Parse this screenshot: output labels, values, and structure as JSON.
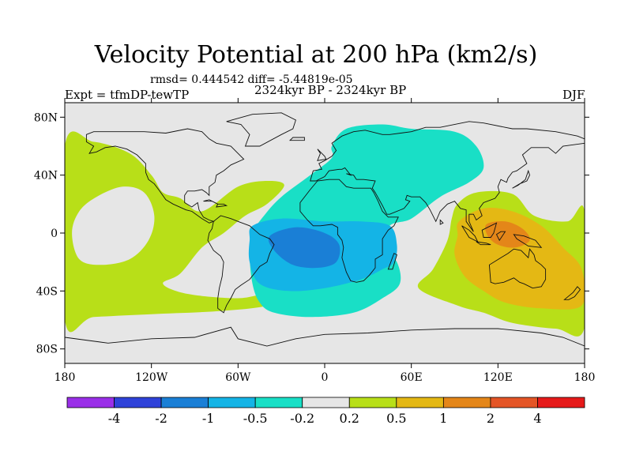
{
  "title": "Velocity Potential at 200 hPa (km2/s)",
  "stats_line": "rmsd= 0.444542 diff= -5.44819e-05",
  "period": "2324kyr BP - 2324kyr BP",
  "experiment": "Expt = tfmDP-tewTP",
  "season": "DJF",
  "chart_data": {
    "type": "heatmap",
    "projection": "cylindrical-equidistant",
    "variable": "Velocity Potential at 200 hPa",
    "units": "km2/s",
    "xlim": [
      -180,
      180
    ],
    "ylim": [
      -90,
      90
    ],
    "x_ticks": [
      {
        "value": -180,
        "label": "180"
      },
      {
        "value": -120,
        "label": "120W"
      },
      {
        "value": -60,
        "label": "60W"
      },
      {
        "value": 0,
        "label": "0"
      },
      {
        "value": 60,
        "label": "60E"
      },
      {
        "value": 120,
        "label": "120E"
      },
      {
        "value": 180,
        "label": "180"
      }
    ],
    "y_ticks": [
      {
        "value": 80,
        "label": "80N"
      },
      {
        "value": 40,
        "label": "40N"
      },
      {
        "value": 0,
        "label": "0"
      },
      {
        "value": -40,
        "label": "40S"
      },
      {
        "value": -80,
        "label": "80S"
      }
    ],
    "colorbar": {
      "levels": [
        -4,
        -2,
        -1,
        -0.5,
        -0.2,
        0.2,
        0.5,
        1,
        2,
        4
      ],
      "labels": [
        "-4",
        "-2",
        "-1",
        "-0.5",
        "-0.2",
        "0.2",
        "0.5",
        "1",
        "2",
        "4"
      ],
      "colors": [
        "#9a2fe8",
        "#2f42d9",
        "#1a7fd6",
        "#14b4e6",
        "#19dfc6",
        "#e6e6e6",
        "#b8df18",
        "#e4b814",
        "#e48619",
        "#e45526",
        "#e61a1a"
      ]
    },
    "regions": [
      {
        "name": "central-pacific-positive",
        "value_class": "0.2 to 0.5",
        "points": [
          [
            -180,
            60
          ],
          [
            -160,
            63
          ],
          [
            -135,
            55
          ],
          [
            -120,
            40
          ],
          [
            -112,
            28
          ],
          [
            -100,
            24
          ],
          [
            -85,
            15
          ],
          [
            -60,
            32
          ],
          [
            -40,
            36
          ],
          [
            -28,
            33
          ],
          [
            -40,
            20
          ],
          [
            -55,
            12
          ],
          [
            -70,
            0
          ],
          [
            -85,
            -10
          ],
          [
            -100,
            -28
          ],
          [
            -112,
            -35
          ],
          [
            -95,
            -42
          ],
          [
            -60,
            -45
          ],
          [
            -40,
            -42
          ],
          [
            -40,
            -50
          ],
          [
            -75,
            -54
          ],
          [
            -120,
            -56
          ],
          [
            -160,
            -58
          ],
          [
            -180,
            -60
          ]
        ]
      },
      {
        "name": "north-pacific-neutral-hole",
        "value_class": "-0.2 to 0.2",
        "points": [
          [
            -170,
            15
          ],
          [
            -158,
            25
          ],
          [
            -140,
            32
          ],
          [
            -125,
            28
          ],
          [
            -118,
            12
          ],
          [
            -122,
            -5
          ],
          [
            -135,
            -18
          ],
          [
            -155,
            -22
          ],
          [
            -170,
            -18
          ],
          [
            -175,
            0
          ]
        ]
      },
      {
        "name": "west-pacific-positive",
        "value_class": "0.2 to 0.5",
        "points": [
          [
            92,
            20
          ],
          [
            105,
            28
          ],
          [
            130,
            27
          ],
          [
            145,
            12
          ],
          [
            168,
            8
          ],
          [
            180,
            15
          ],
          [
            180,
            -65
          ],
          [
            160,
            -66
          ],
          [
            130,
            -62
          ],
          [
            110,
            -55
          ],
          [
            92,
            -50
          ],
          [
            65,
            -38
          ],
          [
            75,
            -25
          ],
          [
            85,
            -5
          ],
          [
            88,
            10
          ]
        ]
      },
      {
        "name": "maritime-continent-high",
        "value_class": "0.5 to 1",
        "points": [
          [
            93,
            8
          ],
          [
            110,
            17
          ],
          [
            130,
            15
          ],
          [
            150,
            5
          ],
          [
            165,
            -10
          ],
          [
            178,
            -25
          ],
          [
            178,
            -50
          ],
          [
            150,
            -52
          ],
          [
            125,
            -48
          ],
          [
            110,
            -40
          ],
          [
            97,
            -30
          ],
          [
            90,
            -15
          ],
          [
            92,
            -2
          ]
        ]
      },
      {
        "name": "indonesia-core",
        "value_class": "1 to 2",
        "points": [
          [
            112,
            6
          ],
          [
            125,
            8
          ],
          [
            137,
            3
          ],
          [
            142,
            -5
          ],
          [
            132,
            -10
          ],
          [
            120,
            -8
          ],
          [
            113,
            -2
          ]
        ]
      },
      {
        "name": "atlantic-africa-negative",
        "value_class": "-0.5 to -0.2",
        "points": [
          [
            -30,
            25
          ],
          [
            -10,
            40
          ],
          [
            5,
            52
          ],
          [
            5,
            60
          ],
          [
            15,
            72
          ],
          [
            40,
            75
          ],
          [
            60,
            72
          ],
          [
            90,
            70
          ],
          [
            105,
            60
          ],
          [
            110,
            45
          ],
          [
            100,
            35
          ],
          [
            80,
            25
          ],
          [
            60,
            10
          ],
          [
            45,
            5
          ],
          [
            40,
            -10
          ],
          [
            50,
            -20
          ],
          [
            52,
            -35
          ],
          [
            40,
            -45
          ],
          [
            20,
            -55
          ],
          [
            -10,
            -58
          ],
          [
            -35,
            -55
          ],
          [
            -45,
            -48
          ],
          [
            -50,
            -35
          ],
          [
            -52,
            -15
          ],
          [
            -50,
            0
          ],
          [
            -42,
            12
          ]
        ]
      },
      {
        "name": "tropical-atlantic-trough",
        "value_class": "-1 to -0.5",
        "points": [
          [
            -50,
            5
          ],
          [
            -30,
            10
          ],
          [
            0,
            8
          ],
          [
            25,
            8
          ],
          [
            45,
            5
          ],
          [
            50,
            -8
          ],
          [
            48,
            -20
          ],
          [
            40,
            -25
          ],
          [
            25,
            -32
          ],
          [
            0,
            -38
          ],
          [
            -25,
            -40
          ],
          [
            -45,
            -35
          ],
          [
            -52,
            -20
          ],
          [
            -52,
            -5
          ]
        ]
      },
      {
        "name": "atlantic-core",
        "value_class": "-2 to -1",
        "points": [
          [
            -38,
            -2
          ],
          [
            -20,
            4
          ],
          [
            0,
            0
          ],
          [
            10,
            -8
          ],
          [
            8,
            -20
          ],
          [
            -5,
            -24
          ],
          [
            -22,
            -22
          ],
          [
            -35,
            -12
          ]
        ]
      }
    ]
  }
}
